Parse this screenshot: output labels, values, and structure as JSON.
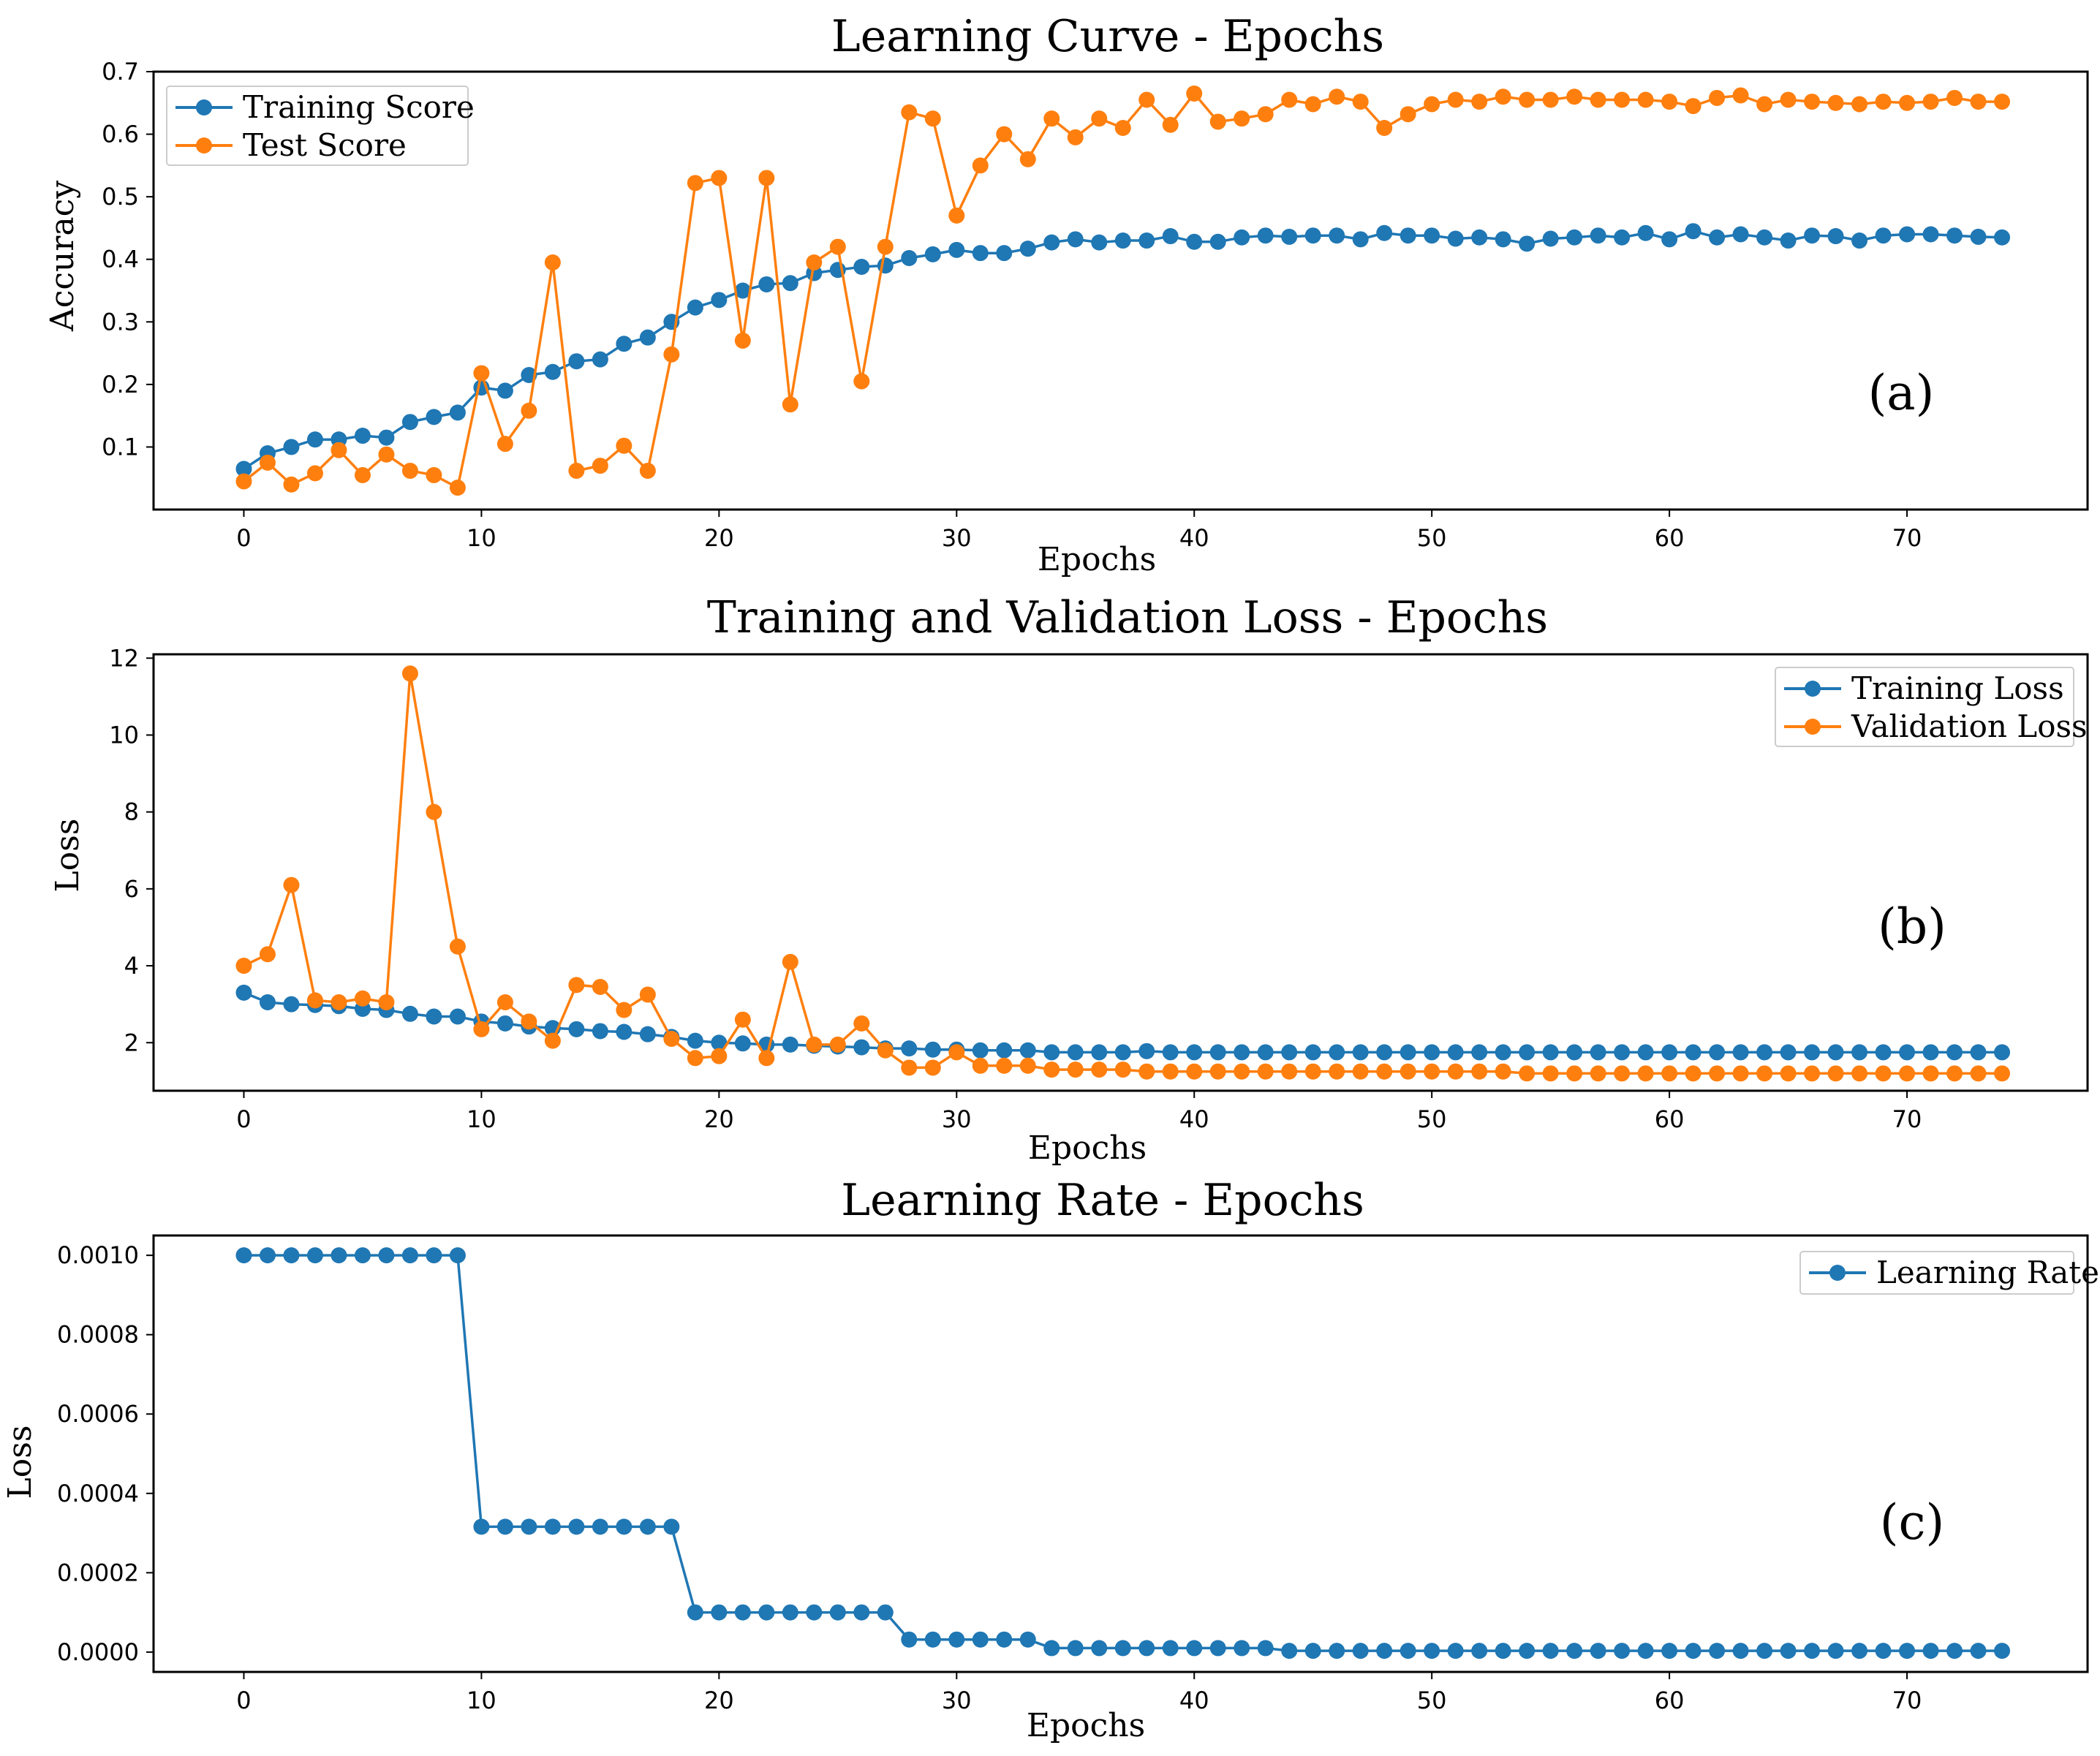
{
  "colors": {
    "blue": "#1f77b4",
    "orange": "#ff7f0e"
  },
  "chart_data": [
    {
      "type": "line",
      "title": "Learning Curve - Epochs",
      "xlabel": "Epochs",
      "ylabel": "Accuracy",
      "panel_label": "(a)",
      "xlim": [
        -3.8,
        77.6
      ],
      "ylim": [
        0.0,
        0.7
      ],
      "xticks": [
        0,
        10,
        20,
        30,
        40,
        50,
        60,
        70
      ],
      "xtick_labels": [
        "0",
        "10",
        "20",
        "30",
        "40",
        "50",
        "60",
        "70"
      ],
      "yticks": [
        0.1,
        0.2,
        0.3,
        0.4,
        0.5,
        0.6,
        0.7
      ],
      "ytick_labels": [
        "0.1",
        "0.2",
        "0.3",
        "0.4",
        "0.5",
        "0.6",
        "0.7"
      ],
      "legend_position": "top-left",
      "series": [
        {
          "name": "Training Score",
          "color": "#1f77b4",
          "values": [
            0.065,
            0.09,
            0.1,
            0.112,
            0.112,
            0.118,
            0.115,
            0.14,
            0.148,
            0.155,
            0.195,
            0.19,
            0.215,
            0.22,
            0.237,
            0.24,
            0.265,
            0.275,
            0.3,
            0.323,
            0.335,
            0.35,
            0.36,
            0.362,
            0.378,
            0.383,
            0.388,
            0.39,
            0.402,
            0.408,
            0.415,
            0.41,
            0.41,
            0.417,
            0.427,
            0.432,
            0.427,
            0.43,
            0.43,
            0.437,
            0.428,
            0.428,
            0.435,
            0.438,
            0.436,
            0.438,
            0.438,
            0.432,
            0.442,
            0.438,
            0.438,
            0.433,
            0.435,
            0.432,
            0.425,
            0.433,
            0.435,
            0.438,
            0.435,
            0.442,
            0.432,
            0.445,
            0.435,
            0.44,
            0.435,
            0.43,
            0.438,
            0.437,
            0.43,
            0.438,
            0.44,
            0.44,
            0.438,
            0.436,
            0.435
          ]
        },
        {
          "name": "Test Score",
          "color": "#ff7f0e",
          "values": [
            0.045,
            0.075,
            0.04,
            0.058,
            0.095,
            0.055,
            0.088,
            0.062,
            0.055,
            0.035,
            0.218,
            0.105,
            0.158,
            0.395,
            0.062,
            0.07,
            0.102,
            0.062,
            0.248,
            0.522,
            0.53,
            0.27,
            0.53,
            0.168,
            0.395,
            0.42,
            0.205,
            0.42,
            0.635,
            0.625,
            0.47,
            0.55,
            0.6,
            0.56,
            0.625,
            0.595,
            0.625,
            0.61,
            0.655,
            0.615,
            0.665,
            0.62,
            0.625,
            0.632,
            0.655,
            0.648,
            0.66,
            0.652,
            0.61,
            0.632,
            0.648,
            0.655,
            0.652,
            0.66,
            0.655,
            0.655,
            0.66,
            0.655,
            0.655,
            0.655,
            0.652,
            0.645,
            0.658,
            0.662,
            0.648,
            0.655,
            0.652,
            0.65,
            0.648,
            0.652,
            0.65,
            0.652,
            0.658,
            0.652,
            0.652
          ]
        }
      ]
    },
    {
      "type": "line",
      "title": "Training and Validation Loss - Epochs",
      "xlabel": "Epochs",
      "ylabel": "Loss",
      "panel_label": "(b)",
      "xlim": [
        -3.8,
        77.6
      ],
      "ylim": [
        0.75,
        12.1
      ],
      "xticks": [
        0,
        10,
        20,
        30,
        40,
        50,
        60,
        70
      ],
      "xtick_labels": [
        "0",
        "10",
        "20",
        "30",
        "40",
        "50",
        "60",
        "70"
      ],
      "yticks": [
        2,
        4,
        6,
        8,
        10,
        12
      ],
      "ytick_labels": [
        "2",
        "4",
        "6",
        "8",
        "10",
        "12"
      ],
      "legend_position": "top-right",
      "series": [
        {
          "name": "Training Loss",
          "color": "#1f77b4",
          "values": [
            3.3,
            3.05,
            3.0,
            2.98,
            2.95,
            2.88,
            2.85,
            2.75,
            2.68,
            2.68,
            2.55,
            2.5,
            2.42,
            2.38,
            2.35,
            2.3,
            2.28,
            2.22,
            2.15,
            2.05,
            2.0,
            1.98,
            1.95,
            1.95,
            1.92,
            1.9,
            1.88,
            1.85,
            1.85,
            1.82,
            1.82,
            1.8,
            1.8,
            1.8,
            1.75,
            1.75,
            1.75,
            1.75,
            1.78,
            1.75,
            1.75,
            1.75,
            1.75,
            1.75,
            1.75,
            1.75,
            1.75,
            1.75,
            1.75,
            1.75,
            1.75,
            1.75,
            1.75,
            1.75,
            1.75,
            1.75,
            1.75,
            1.75,
            1.75,
            1.75,
            1.75,
            1.75,
            1.75,
            1.75,
            1.75,
            1.75,
            1.75,
            1.75,
            1.75,
            1.75,
            1.75,
            1.75,
            1.75,
            1.75,
            1.75
          ]
        },
        {
          "name": "Validation Loss",
          "color": "#ff7f0e",
          "values": [
            4.0,
            4.3,
            6.1,
            3.1,
            3.05,
            3.15,
            3.05,
            11.6,
            8.0,
            4.5,
            2.35,
            3.05,
            2.55,
            2.05,
            3.5,
            3.45,
            2.85,
            3.25,
            2.1,
            1.6,
            1.65,
            2.6,
            1.6,
            4.1,
            1.95,
            1.95,
            2.5,
            1.8,
            1.35,
            1.35,
            1.75,
            1.4,
            1.4,
            1.4,
            1.3,
            1.3,
            1.3,
            1.3,
            1.25,
            1.25,
            1.25,
            1.25,
            1.25,
            1.25,
            1.25,
            1.25,
            1.25,
            1.25,
            1.25,
            1.25,
            1.25,
            1.25,
            1.25,
            1.25,
            1.2,
            1.2,
            1.2,
            1.2,
            1.2,
            1.2,
            1.2,
            1.2,
            1.2,
            1.2,
            1.2,
            1.2,
            1.2,
            1.2,
            1.2,
            1.2,
            1.2,
            1.2,
            1.2,
            1.2,
            1.2
          ]
        }
      ]
    },
    {
      "type": "line",
      "title": "Learning Rate - Epochs",
      "xlabel": "Epochs",
      "ylabel": "Loss",
      "panel_label": "(c)",
      "xlim": [
        -3.8,
        77.6
      ],
      "ylim": [
        -5e-05,
        0.00105
      ],
      "xticks": [
        0,
        10,
        20,
        30,
        40,
        50,
        60,
        70
      ],
      "xtick_labels": [
        "0",
        "10",
        "20",
        "30",
        "40",
        "50",
        "60",
        "70"
      ],
      "yticks": [
        0.0,
        0.0002,
        0.0004,
        0.0006,
        0.0008,
        0.001
      ],
      "ytick_labels": [
        "0.0000",
        "0.0002",
        "0.0004",
        "0.0006",
        "0.0008",
        "0.0010"
      ],
      "legend_position": "top-right",
      "series": [
        {
          "name": "Learning Rate",
          "color": "#1f77b4",
          "values": [
            0.001,
            0.001,
            0.001,
            0.001,
            0.001,
            0.001,
            0.001,
            0.001,
            0.001,
            0.001,
            0.000316,
            0.000316,
            0.000316,
            0.000316,
            0.000316,
            0.000316,
            0.000316,
            0.000316,
            0.000316,
            0.0001,
            0.0001,
            0.0001,
            0.0001,
            0.0001,
            0.0001,
            0.0001,
            0.0001,
            0.0001,
            3.16e-05,
            3.16e-05,
            3.16e-05,
            3.16e-05,
            3.16e-05,
            3.16e-05,
            1e-05,
            1e-05,
            1e-05,
            1e-05,
            1e-05,
            1e-05,
            1e-05,
            1e-05,
            1e-05,
            1e-05,
            3.2e-06,
            3.2e-06,
            3.2e-06,
            3.2e-06,
            3.2e-06,
            3.2e-06,
            3.2e-06,
            3.2e-06,
            3.2e-06,
            3.2e-06,
            3.2e-06,
            3.2e-06,
            3.2e-06,
            3.2e-06,
            3.2e-06,
            3.2e-06,
            3.2e-06,
            3.2e-06,
            3.2e-06,
            3.2e-06,
            3.2e-06,
            3.2e-06,
            3.2e-06,
            3.2e-06,
            3.2e-06,
            3.2e-06,
            3.2e-06,
            3.2e-06,
            3.2e-06,
            3.2e-06,
            3.2e-06
          ]
        }
      ]
    }
  ]
}
